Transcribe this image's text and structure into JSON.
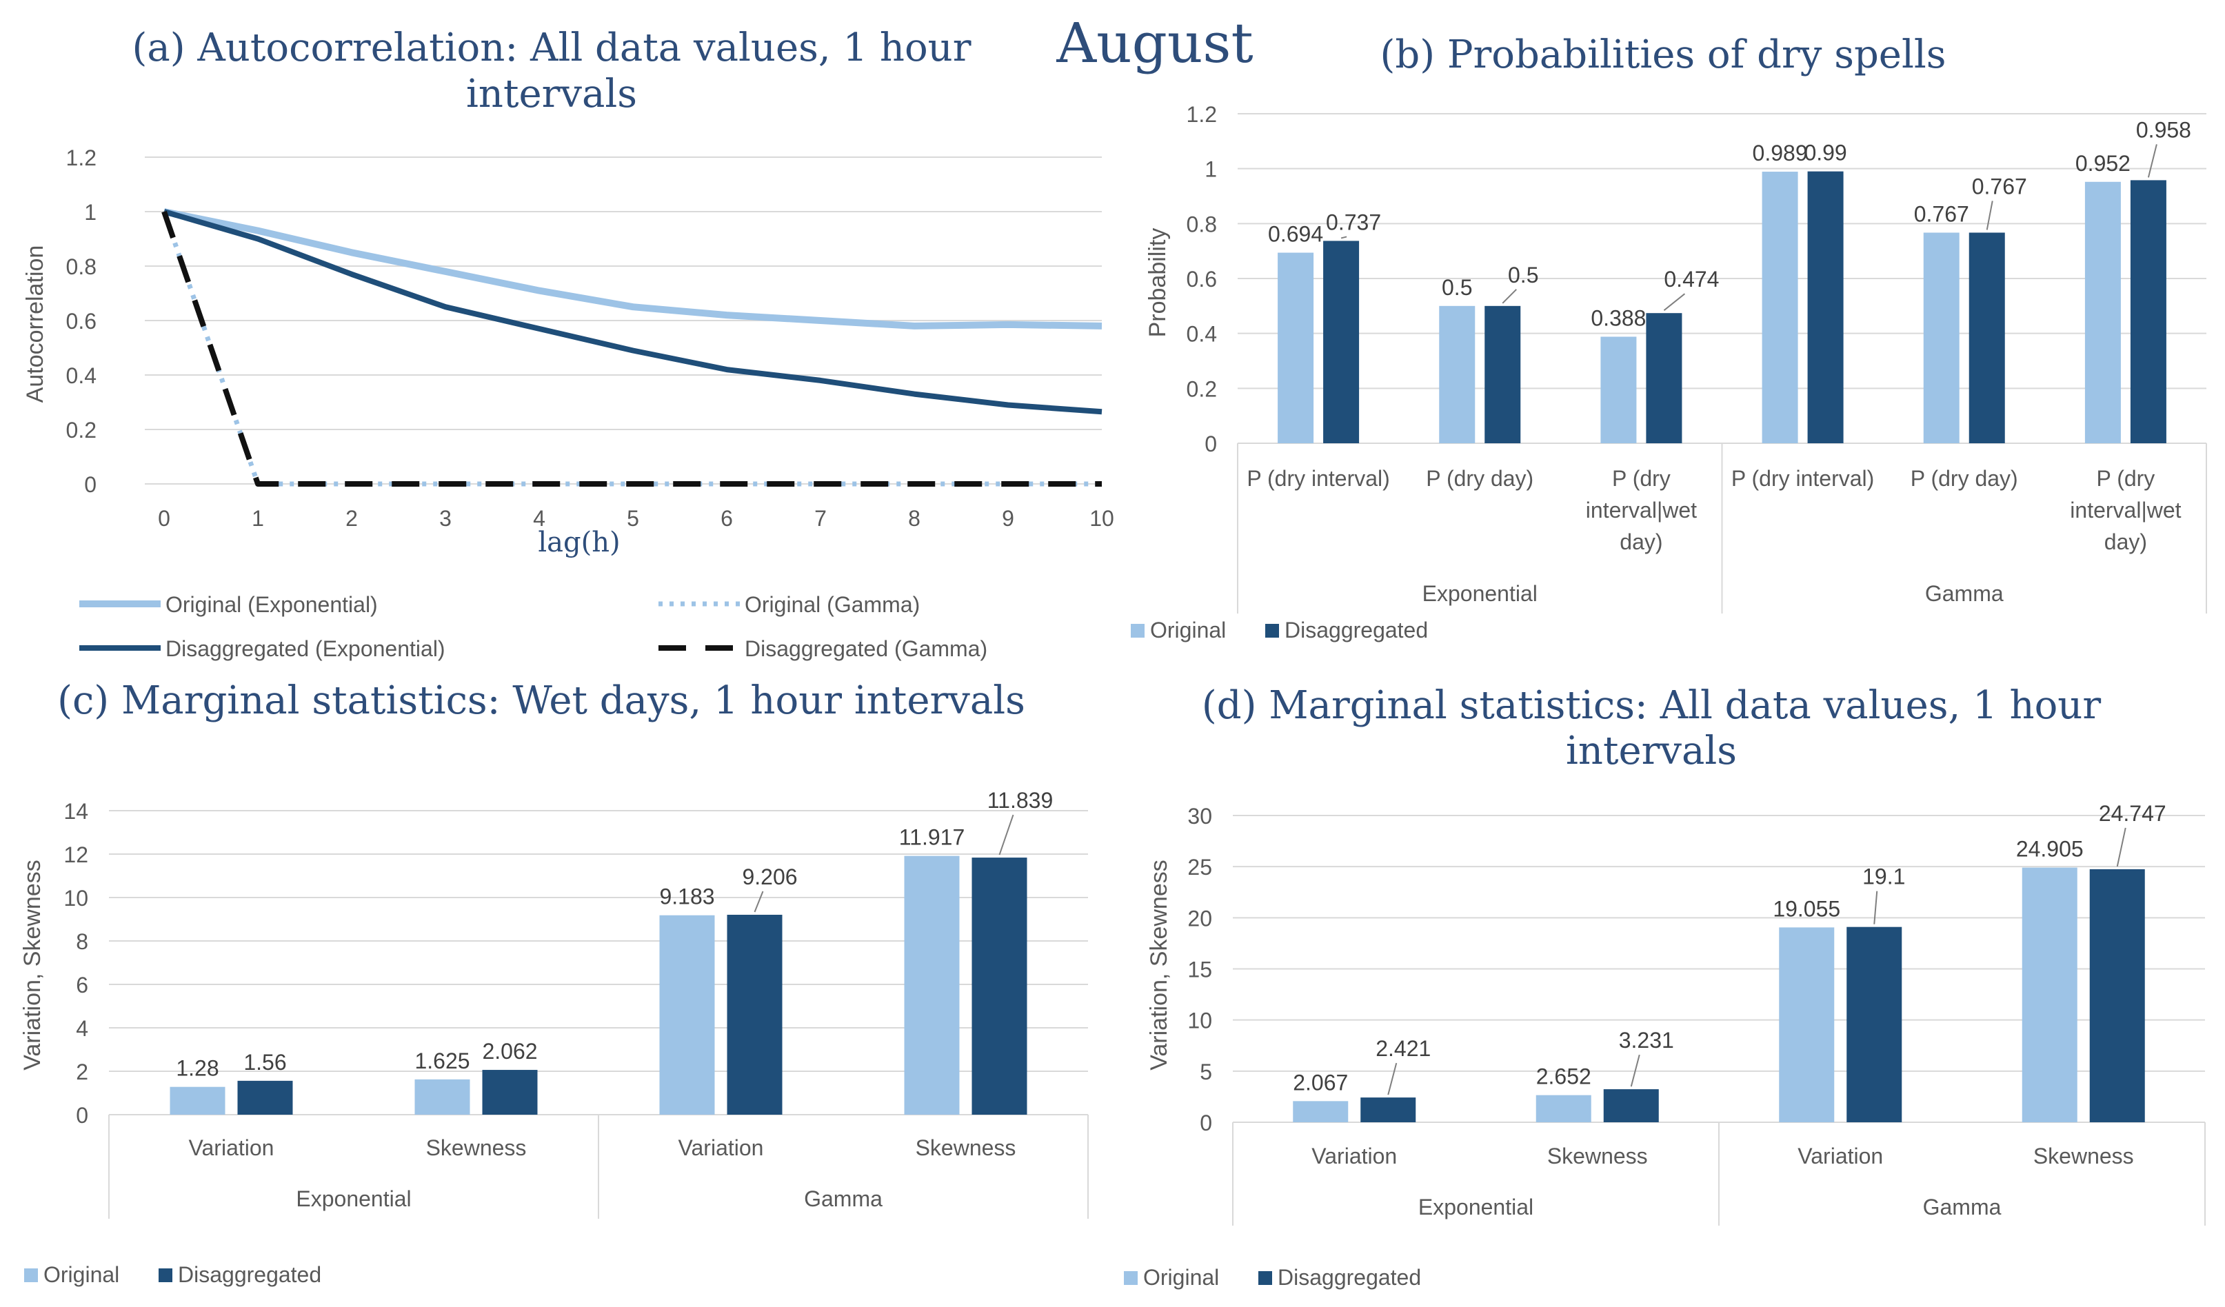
{
  "main_title": "August",
  "colors": {
    "light": "#9dc3e6",
    "dark": "#1f4e79",
    "title": "#2e4d7a",
    "text": "#595959",
    "grid": "#d9d9d9"
  },
  "chart_data": [
    {
      "id": "a",
      "type": "line",
      "title_line1": "(a) Autocorrelation: All data values, 1 hour",
      "title_line2": "intervals",
      "xlabel": "lag(h)",
      "ylabel": "Autocorrelation",
      "x": [
        0,
        1,
        2,
        3,
        4,
        5,
        6,
        7,
        8,
        9,
        10
      ],
      "xticks": [
        "0",
        "1",
        "2",
        "3",
        "4",
        "5",
        "6",
        "7",
        "8",
        "9",
        "10"
      ],
      "yticks": [
        "0",
        "0.2",
        "0.4",
        "0.6",
        "0.8",
        "1",
        "1.2"
      ],
      "ylim": [
        0,
        1.2
      ],
      "grid": true,
      "legend_position": "bottom",
      "series": [
        {
          "name": "Original (Exponential)",
          "style": "solid-light",
          "values": [
            1,
            0.93,
            0.85,
            0.78,
            0.71,
            0.65,
            0.62,
            0.6,
            0.58,
            0.585,
            0.58
          ]
        },
        {
          "name": "Original (Gamma)",
          "style": "dotted-light",
          "values": [
            1,
            0,
            0,
            0,
            0,
            0,
            0,
            0,
            0,
            0,
            0
          ]
        },
        {
          "name": "Disaggregated (Exponential)",
          "style": "solid-dark",
          "values": [
            1,
            0.9,
            0.77,
            0.65,
            0.57,
            0.49,
            0.42,
            0.38,
            0.33,
            0.29,
            0.265
          ]
        },
        {
          "name": "Disaggregated (Gamma)",
          "style": "dashed-dark",
          "values": [
            1,
            0,
            0,
            0,
            0,
            0,
            0,
            0,
            0,
            0,
            0
          ]
        }
      ]
    },
    {
      "id": "b",
      "type": "bar",
      "title": "(b) Probabilities of dry spells",
      "ylabel": "Probability",
      "yticks": [
        "0",
        "0.2",
        "0.4",
        "0.6",
        "0.8",
        "1",
        "1.2"
      ],
      "ylim": [
        0,
        1.2
      ],
      "groups": [
        "Exponential",
        "Gamma"
      ],
      "categories": [
        [
          "P (dry interval)"
        ],
        [
          "P (dry day)"
        ],
        [
          "P (dry",
          "interval|wet",
          "day)"
        ],
        [
          "P (dry interval)"
        ],
        [
          "P (dry day)"
        ],
        [
          "P (dry",
          "interval|wet",
          "day)"
        ]
      ],
      "series": [
        {
          "name": "Original",
          "values": [
            0.694,
            0.5,
            0.388,
            0.989,
            0.767,
            0.952
          ]
        },
        {
          "name": "Disaggregated",
          "values": [
            0.737,
            0.5,
            0.474,
            0.99,
            0.767,
            0.958
          ]
        }
      ],
      "labels": [
        [
          "0.694",
          "0.5",
          "0.388",
          "0.989",
          "0.767",
          "0.952"
        ],
        [
          "0.737",
          "0.5",
          "0.474",
          "0.99",
          "0.767",
          "0.958"
        ]
      ],
      "legend_position": "bottom-left"
    },
    {
      "id": "c",
      "type": "bar",
      "title": "(c) Marginal statistics: Wet days, 1 hour intervals",
      "ylabel": "Variation, Skewness",
      "yticks": [
        "0",
        "2",
        "4",
        "6",
        "8",
        "10",
        "12",
        "14"
      ],
      "ylim": [
        0,
        14
      ],
      "groups": [
        "Exponential",
        "Gamma"
      ],
      "categories": [
        [
          "Variation"
        ],
        [
          "Skewness"
        ],
        [
          "Variation"
        ],
        [
          "Skewness"
        ]
      ],
      "series": [
        {
          "name": "Original",
          "values": [
            1.28,
            1.625,
            9.183,
            11.917
          ]
        },
        {
          "name": "Disaggregated",
          "values": [
            1.56,
            2.062,
            9.206,
            11.839
          ]
        }
      ],
      "labels": [
        [
          "1.28",
          "1.625",
          "9.183",
          "11.917"
        ],
        [
          "1.56",
          "2.062",
          "9.206",
          "11.839"
        ]
      ],
      "legend_position": "bottom-left"
    },
    {
      "id": "d",
      "type": "bar",
      "title_line1": "(d) Marginal statistics: All data values, 1 hour",
      "title_line2": "intervals",
      "ylabel": "Variation, Skewness",
      "yticks": [
        "0",
        "5",
        "10",
        "15",
        "20",
        "25",
        "30"
      ],
      "ylim": [
        0,
        30
      ],
      "groups": [
        "Exponential",
        "Gamma"
      ],
      "categories": [
        [
          "Variation"
        ],
        [
          "Skewness"
        ],
        [
          "Variation"
        ],
        [
          "Skewness"
        ]
      ],
      "series": [
        {
          "name": "Original",
          "values": [
            2.067,
            2.652,
            19.055,
            24.905
          ]
        },
        {
          "name": "Disaggregated",
          "values": [
            2.421,
            3.231,
            19.1,
            24.747
          ]
        }
      ],
      "labels": [
        [
          "2.067",
          "2.652",
          "19.055",
          "24.905"
        ],
        [
          "2.421",
          "3.231",
          "19.1",
          "24.747"
        ]
      ],
      "legend_position": "bottom-left"
    }
  ]
}
